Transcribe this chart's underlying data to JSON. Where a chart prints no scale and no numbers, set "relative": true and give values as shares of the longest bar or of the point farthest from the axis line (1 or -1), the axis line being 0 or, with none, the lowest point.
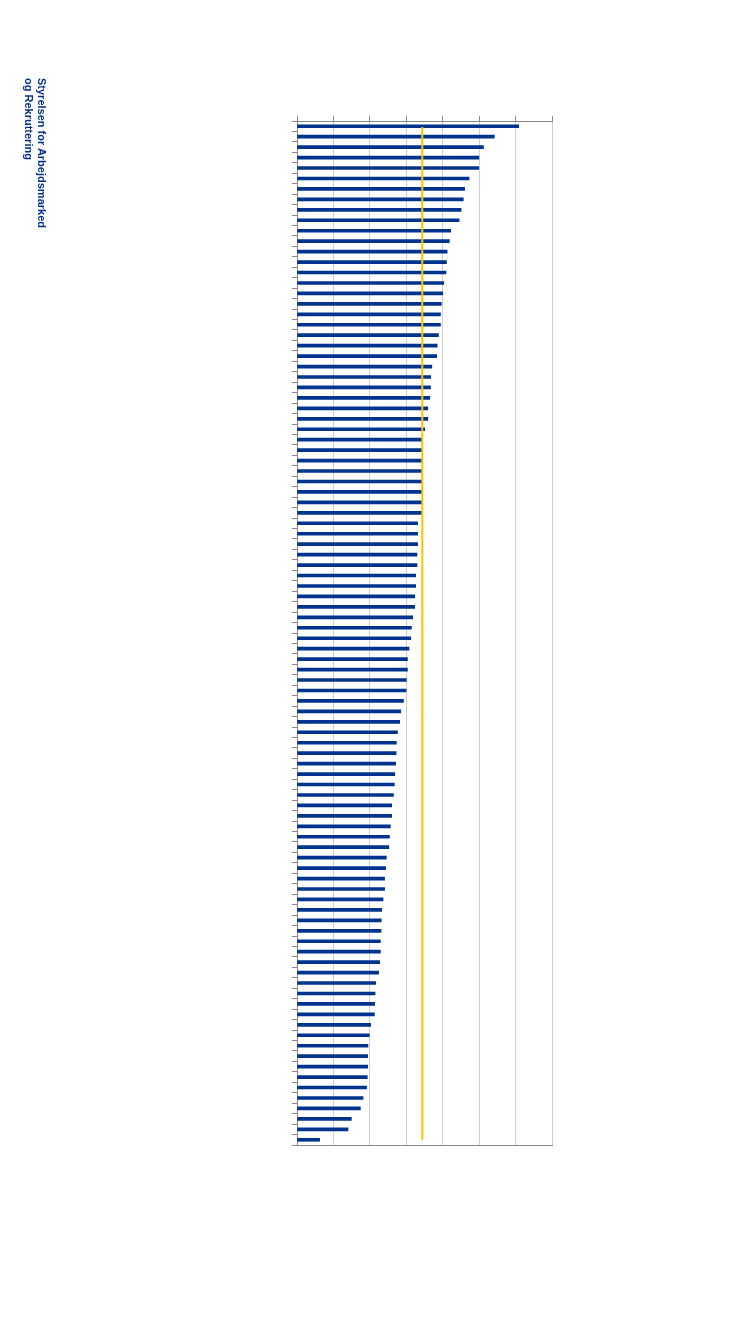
{
  "chart_data": {
    "type": "bar",
    "orientation": "horizontal",
    "relative": true,
    "grid": "x",
    "color": "#00338d",
    "categories": [
      null,
      null,
      null,
      null,
      null,
      null,
      null,
      null,
      null,
      null,
      null,
      null,
      null,
      null,
      null,
      null,
      null,
      null,
      null,
      null,
      null,
      null,
      null,
      null,
      null,
      null,
      null,
      null,
      null,
      null,
      null,
      null,
      null,
      null,
      null,
      null,
      null,
      null,
      null,
      null,
      null,
      null,
      null,
      null,
      null,
      null,
      null,
      null,
      null,
      null,
      null,
      null,
      null,
      null,
      null,
      null,
      null,
      null,
      null,
      null,
      null,
      null,
      null,
      null,
      null,
      null,
      null,
      null,
      null,
      null,
      null,
      null,
      null,
      null,
      null,
      null,
      null,
      null,
      null,
      null,
      null,
      null,
      null,
      null,
      null,
      null,
      null,
      null,
      null,
      null,
      null,
      null,
      null,
      null,
      null,
      null,
      null,
      null
    ],
    "values": [
      1,
      0.89,
      0.841,
      0.82,
      0.82,
      0.776,
      0.756,
      0.75,
      0.74,
      0.731,
      0.693,
      0.687,
      0.677,
      0.674,
      0.672,
      0.662,
      0.657,
      0.651,
      0.647,
      0.647,
      0.638,
      0.632,
      0.63,
      0.608,
      0.603,
      0.602,
      0.599,
      0.59,
      0.59,
      0.576,
      0.564,
      0.564,
      0.564,
      0.564,
      0.564,
      0.564,
      0.564,
      0.564,
      0.544,
      0.544,
      0.544,
      0.541,
      0.541,
      0.535,
      0.535,
      0.531,
      0.531,
      0.522,
      0.516,
      0.513,
      0.505,
      0.498,
      0.498,
      0.493,
      0.492,
      0.48,
      0.468,
      0.463,
      0.453,
      0.448,
      0.447,
      0.445,
      0.441,
      0.439,
      0.435,
      0.427,
      0.427,
      0.421,
      0.417,
      0.414,
      0.403,
      0.4,
      0.395,
      0.395,
      0.388,
      0.382,
      0.38,
      0.379,
      0.376,
      0.376,
      0.373,
      0.368,
      0.355,
      0.352,
      0.35,
      0.349,
      0.332,
      0.326,
      0.32,
      0.319,
      0.319,
      0.317,
      0.314,
      0.298,
      0.286,
      0.245,
      0.23,
      0.102
    ],
    "ref_lines": [
      {
        "axis": "x",
        "value": 0.565,
        "color": "#ffc000"
      }
    ],
    "annotations": [
      "Styrelsen for Arbejdsmarked og Rekruttering"
    ]
  }
}
